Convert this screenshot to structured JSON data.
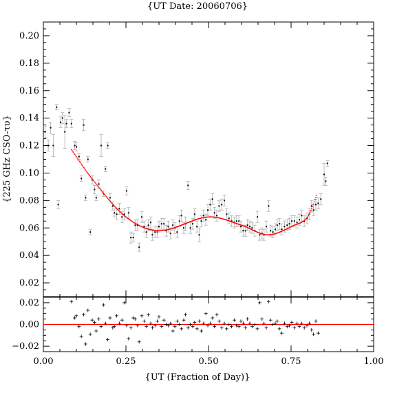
{
  "chart_data": {
    "type": "scatter",
    "title": "{UT Date: 20060706}",
    "xlabel": "{UT (Fraction of Day)}",
    "ylabel": "{225 GHz CSO-τυ}",
    "xlim": [
      0.0,
      1.0
    ],
    "main": {
      "ylim": [
        0.01,
        0.21
      ],
      "x_ticks": [
        0.0,
        0.25,
        0.5,
        0.75,
        1.0
      ],
      "x_tick_labels": [
        "0.00",
        "0.25",
        "0.50",
        "0.75",
        "1.00"
      ],
      "y_ticks": [
        0.02,
        0.04,
        0.06,
        0.08,
        0.1,
        0.12,
        0.14,
        0.16,
        0.18,
        0.2
      ],
      "y_tick_labels": [
        "0.02",
        "0.04",
        "0.06",
        "0.08",
        "0.10",
        "0.12",
        "0.14",
        "0.16",
        "0.18",
        "0.20"
      ],
      "series": [
        {
          "kind": "measurements",
          "color": "#000000",
          "error_color": "#bbbbbb",
          "points": [
            [
              0.005,
              0.13,
              0.004
            ],
            [
              0.015,
              0.12,
              0.004
            ],
            [
              0.022,
              0.133,
              0.004
            ],
            [
              0.03,
              0.12,
              0.008
            ],
            [
              0.04,
              0.148,
              0.002
            ],
            [
              0.045,
              0.077,
              0.003
            ],
            [
              0.052,
              0.137,
              0.004
            ],
            [
              0.058,
              0.14,
              0.004
            ],
            [
              0.065,
              0.13,
              0.012
            ],
            [
              0.07,
              0.136,
              0.003
            ],
            [
              0.078,
              0.144,
              0.003
            ],
            [
              0.085,
              0.136,
              0.003
            ],
            [
              0.095,
              0.12,
              0.003
            ],
            [
              0.1,
              0.119,
              0.003
            ],
            [
              0.108,
              0.112,
              0.002
            ],
            [
              0.115,
              0.096,
              0.002
            ],
            [
              0.122,
              0.135,
              0.004
            ],
            [
              0.128,
              0.082,
              0.002
            ],
            [
              0.135,
              0.11,
              0.002
            ],
            [
              0.142,
              0.057,
              0.002
            ],
            [
              0.148,
              0.095,
              0.003
            ],
            [
              0.155,
              0.088,
              0.003
            ],
            [
              0.16,
              0.082,
              0.002
            ],
            [
              0.168,
              0.092,
              0.003
            ],
            [
              0.175,
              0.12,
              0.008
            ],
            [
              0.182,
              0.085,
              0.002
            ],
            [
              0.188,
              0.103,
              0.002
            ],
            [
              0.195,
              0.12,
              0.002
            ],
            [
              0.202,
              0.082,
              0.003
            ],
            [
              0.21,
              0.076,
              0.003
            ],
            [
              0.215,
              0.071,
              0.003
            ],
            [
              0.222,
              0.07,
              0.004
            ],
            [
              0.23,
              0.074,
              0.004
            ],
            [
              0.238,
              0.068,
              0.004
            ],
            [
              0.245,
              0.07,
              0.004
            ],
            [
              0.252,
              0.087,
              0.003
            ],
            [
              0.258,
              0.071,
              0.004
            ],
            [
              0.265,
              0.053,
              0.004
            ],
            [
              0.272,
              0.053,
              0.003
            ],
            [
              0.278,
              0.062,
              0.004
            ],
            [
              0.285,
              0.062,
              0.004
            ],
            [
              0.29,
              0.046,
              0.003
            ],
            [
              0.298,
              0.068,
              0.004
            ],
            [
              0.305,
              0.061,
              0.004
            ],
            [
              0.312,
              0.057,
              0.004
            ],
            [
              0.318,
              0.062,
              0.004
            ],
            [
              0.325,
              0.064,
              0.004
            ],
            [
              0.33,
              0.055,
              0.004
            ],
            [
              0.338,
              0.057,
              0.004
            ],
            [
              0.345,
              0.057,
              0.004
            ],
            [
              0.35,
              0.061,
              0.004
            ],
            [
              0.358,
              0.063,
              0.004
            ],
            [
              0.365,
              0.063,
              0.004
            ],
            [
              0.372,
              0.058,
              0.004
            ],
            [
              0.378,
              0.061,
              0.004
            ],
            [
              0.385,
              0.056,
              0.004
            ],
            [
              0.392,
              0.062,
              0.004
            ],
            [
              0.398,
              0.06,
              0.004
            ],
            [
              0.405,
              0.057,
              0.004
            ],
            [
              0.412,
              0.065,
              0.004
            ],
            [
              0.418,
              0.069,
              0.004
            ],
            [
              0.425,
              0.06,
              0.004
            ],
            [
              0.43,
              0.063,
              0.005
            ],
            [
              0.438,
              0.091,
              0.003
            ],
            [
              0.445,
              0.06,
              0.004
            ],
            [
              0.452,
              0.063,
              0.004
            ],
            [
              0.458,
              0.07,
              0.004
            ],
            [
              0.465,
              0.061,
              0.004
            ],
            [
              0.472,
              0.055,
              0.005
            ],
            [
              0.478,
              0.065,
              0.004
            ],
            [
              0.485,
              0.069,
              0.004
            ],
            [
              0.492,
              0.066,
              0.004
            ],
            [
              0.498,
              0.073,
              0.004
            ],
            [
              0.505,
              0.077,
              0.004
            ],
            [
              0.512,
              0.081,
              0.004
            ],
            [
              0.518,
              0.071,
              0.004
            ],
            [
              0.525,
              0.069,
              0.004
            ],
            [
              0.532,
              0.076,
              0.004
            ],
            [
              0.54,
              0.077,
              0.004
            ],
            [
              0.548,
              0.08,
              0.004
            ],
            [
              0.555,
              0.07,
              0.004
            ],
            [
              0.562,
              0.067,
              0.004
            ],
            [
              0.57,
              0.065,
              0.004
            ],
            [
              0.578,
              0.064,
              0.004
            ],
            [
              0.585,
              0.065,
              0.004
            ],
            [
              0.592,
              0.065,
              0.004
            ],
            [
              0.598,
              0.061,
              0.004
            ],
            [
              0.605,
              0.058,
              0.004
            ],
            [
              0.612,
              0.058,
              0.004
            ],
            [
              0.618,
              0.062,
              0.004
            ],
            [
              0.625,
              0.061,
              0.004
            ],
            [
              0.632,
              0.06,
              0.004
            ],
            [
              0.64,
              0.058,
              0.004
            ],
            [
              0.648,
              0.068,
              0.004
            ],
            [
              0.655,
              0.055,
              0.004
            ],
            [
              0.662,
              0.056,
              0.004
            ],
            [
              0.668,
              0.055,
              0.004
            ],
            [
              0.675,
              0.061,
              0.004
            ],
            [
              0.682,
              0.076,
              0.004
            ],
            [
              0.688,
              0.058,
              0.004
            ],
            [
              0.695,
              0.057,
              0.004
            ],
            [
              0.702,
              0.059,
              0.004
            ],
            [
              0.708,
              0.062,
              0.004
            ],
            [
              0.715,
              0.063,
              0.004
            ],
            [
              0.722,
              0.059,
              0.004
            ],
            [
              0.73,
              0.061,
              0.004
            ],
            [
              0.738,
              0.062,
              0.004
            ],
            [
              0.745,
              0.063,
              0.004
            ],
            [
              0.752,
              0.065,
              0.004
            ],
            [
              0.76,
              0.065,
              0.004
            ],
            [
              0.768,
              0.064,
              0.004
            ],
            [
              0.775,
              0.066,
              0.004
            ],
            [
              0.782,
              0.069,
              0.004
            ],
            [
              0.79,
              0.065,
              0.004
            ],
            [
              0.798,
              0.067,
              0.004
            ],
            [
              0.805,
              0.07,
              0.004
            ],
            [
              0.812,
              0.076,
              0.004
            ],
            [
              0.818,
              0.073,
              0.004
            ],
            [
              0.825,
              0.077,
              0.004
            ],
            [
              0.832,
              0.078,
              0.004
            ],
            [
              0.84,
              0.081,
              0.004
            ],
            [
              0.85,
              0.099,
              0.008
            ],
            [
              0.855,
              0.094,
              0.003
            ],
            [
              0.86,
              0.107,
              0.002
            ]
          ]
        },
        {
          "kind": "fit",
          "color": "#ff0000",
          "x_range": [
            0.085,
            0.828
          ],
          "x_nodes": [
            0.085,
            0.15,
            0.25,
            0.35,
            0.5,
            0.6,
            0.68,
            0.76,
            0.8,
            0.828
          ],
          "y_nodes": [
            0.117,
            0.095,
            0.068,
            0.058,
            0.068,
            0.062,
            0.055,
            0.062,
            0.068,
            0.084
          ]
        }
      ]
    },
    "residual": {
      "ylim": [
        -0.025,
        0.025
      ],
      "y_ticks": [
        -0.02,
        0.0,
        0.02
      ],
      "y_tick_labels": [
        "−0.02",
        "0.00",
        "0.02"
      ],
      "zero_line_color": "#ff0000",
      "marker_color": "#000000",
      "points": [
        [
          0.085,
          0.021
        ],
        [
          0.095,
          0.006
        ],
        [
          0.1,
          0.008
        ],
        [
          0.108,
          -0.002
        ],
        [
          0.115,
          -0.011
        ],
        [
          0.122,
          0.009
        ],
        [
          0.128,
          -0.018
        ],
        [
          0.135,
          0.013
        ],
        [
          0.142,
          -0.009
        ],
        [
          0.148,
          0.004
        ],
        [
          0.155,
          0.002
        ],
        [
          0.16,
          -0.006
        ],
        [
          0.168,
          0.005
        ],
        [
          0.175,
          -0.002
        ],
        [
          0.182,
          0.018
        ],
        [
          0.188,
          0.001
        ],
        [
          0.195,
          -0.014
        ],
        [
          0.202,
          0.006
        ],
        [
          0.21,
          -0.003
        ],
        [
          0.215,
          -0.002
        ],
        [
          0.222,
          0.008
        ],
        [
          0.23,
          0.001
        ],
        [
          0.238,
          0.004
        ],
        [
          0.245,
          0.02
        ],
        [
          0.252,
          -0.001
        ],
        [
          0.258,
          -0.013
        ],
        [
          0.265,
          -0.003
        ],
        [
          0.272,
          0.006
        ],
        [
          0.278,
          0.005
        ],
        [
          0.285,
          -0.001
        ],
        [
          0.29,
          -0.016
        ],
        [
          0.298,
          0.008
        ],
        [
          0.305,
          0.003
        ],
        [
          0.312,
          -0.002
        ],
        [
          0.318,
          0.009
        ],
        [
          0.325,
          0.001
        ],
        [
          0.33,
          -0.003
        ],
        [
          0.338,
          -0.001
        ],
        [
          0.345,
          0.003
        ],
        [
          0.35,
          0.007
        ],
        [
          0.358,
          -0.002
        ],
        [
          0.365,
          0.004
        ],
        [
          0.372,
          0.0
        ],
        [
          0.378,
          -0.001
        ],
        [
          0.385,
          0.001
        ],
        [
          0.392,
          -0.006
        ],
        [
          0.398,
          -0.002
        ],
        [
          0.405,
          0.003
        ],
        [
          0.412,
          0.0
        ],
        [
          0.418,
          -0.004
        ],
        [
          0.425,
          0.004
        ],
        [
          0.43,
          0.009
        ],
        [
          0.438,
          -0.003
        ],
        [
          0.445,
          0.0
        ],
        [
          0.452,
          -0.002
        ],
        [
          0.458,
          0.002
        ],
        [
          0.465,
          -0.004
        ],
        [
          0.472,
          0.003
        ],
        [
          0.478,
          -0.006
        ],
        [
          0.485,
          0.001
        ],
        [
          0.492,
          0.01
        ],
        [
          0.498,
          -0.001
        ],
        [
          0.505,
          0.001
        ],
        [
          0.512,
          0.006
        ],
        [
          0.518,
          -0.002
        ],
        [
          0.525,
          0.009
        ],
        [
          0.532,
          0.003
        ],
        [
          0.54,
          -0.003
        ],
        [
          0.548,
          0.001
        ],
        [
          0.555,
          -0.004
        ],
        [
          0.562,
          0.0
        ],
        [
          0.57,
          -0.002
        ],
        [
          0.578,
          0.004
        ],
        [
          0.585,
          -0.001
        ],
        [
          0.592,
          -0.002
        ],
        [
          0.598,
          0.003
        ],
        [
          0.605,
          0.001
        ],
        [
          0.612,
          -0.003
        ],
        [
          0.618,
          0.005
        ],
        [
          0.625,
          0.001
        ],
        [
          0.632,
          -0.002
        ],
        [
          0.64,
          0.0
        ],
        [
          0.648,
          -0.004
        ],
        [
          0.655,
          0.02
        ],
        [
          0.662,
          0.005
        ],
        [
          0.668,
          0.001
        ],
        [
          0.675,
          -0.003
        ],
        [
          0.682,
          0.021
        ],
        [
          0.688,
          0.004
        ],
        [
          0.695,
          0.0
        ],
        [
          0.702,
          0.001
        ],
        [
          0.708,
          0.003
        ],
        [
          0.715,
          -0.004
        ],
        [
          0.722,
          -0.008
        ],
        [
          0.73,
          0.001
        ],
        [
          0.738,
          -0.002
        ],
        [
          0.745,
          -0.001
        ],
        [
          0.752,
          0.002
        ],
        [
          0.76,
          -0.003
        ],
        [
          0.768,
          0.001
        ],
        [
          0.775,
          -0.002
        ],
        [
          0.782,
          0.001
        ],
        [
          0.79,
          -0.003
        ],
        [
          0.798,
          -0.001
        ],
        [
          0.805,
          0.001
        ],
        [
          0.812,
          -0.005
        ],
        [
          0.818,
          -0.009
        ],
        [
          0.825,
          0.003
        ],
        [
          0.832,
          -0.008
        ]
      ]
    }
  }
}
